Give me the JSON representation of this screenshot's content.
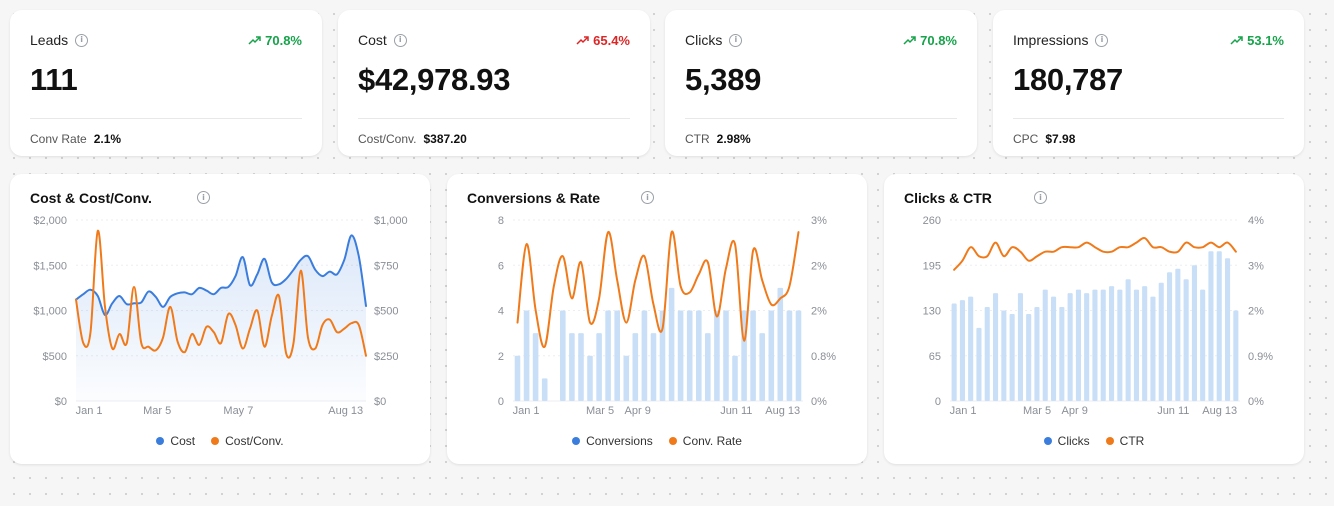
{
  "kpis": [
    {
      "label": "Leads",
      "delta": "70.8%",
      "trend": "up",
      "value": "111",
      "foot_label": "Conv Rate",
      "foot_value": "2.1%"
    },
    {
      "label": "Cost",
      "delta": "65.4%",
      "trend": "up-bad",
      "value": "$42,978.93",
      "foot_label": "Cost/Conv.",
      "foot_value": "$387.20"
    },
    {
      "label": "Clicks",
      "delta": "70.8%",
      "trend": "up",
      "value": "5,389",
      "foot_label": "CTR",
      "foot_value": "2.98%"
    },
    {
      "label": "Impressions",
      "delta": "53.1%",
      "trend": "up",
      "value": "180,787",
      "foot_label": "CPC",
      "foot_value": "$7.98"
    }
  ],
  "colors": {
    "blue": "#3b7ddd",
    "orange": "#f07a1a",
    "bar": "#c9dff7",
    "good": "#16a34a",
    "bad": "#dc2626"
  },
  "chart_data": [
    {
      "type": "line",
      "title": "Cost & Cost/Conv.",
      "x_ticks": [
        "Jan 1",
        "Mar 5",
        "May 7",
        "Aug 13"
      ],
      "y_left_ticks": [
        "$0",
        "$500",
        "$1,000",
        "$1,500",
        "$2,000"
      ],
      "y_right_ticks": [
        "$0",
        "$250",
        "$500",
        "$750",
        "$1,000"
      ],
      "ylim_left": [
        0,
        2000
      ],
      "ylim_right": [
        0,
        1000
      ],
      "series": [
        {
          "name": "Cost",
          "axis": "left",
          "style": "area",
          "color": "#3b7ddd",
          "values": [
            1120,
            1180,
            1230,
            1160,
            950,
            1080,
            1160,
            1070,
            1080,
            1090,
            1210,
            1150,
            1040,
            1150,
            1190,
            1200,
            1180,
            1250,
            1220,
            1180,
            1250,
            1260,
            1380,
            1590,
            1280,
            1400,
            1570,
            1310,
            1290,
            1350,
            1450,
            1560,
            1600,
            1450,
            1380,
            1430,
            1400,
            1560,
            1830,
            1600,
            1050
          ]
        },
        {
          "name": "Cost/Conv.",
          "axis": "right",
          "style": "line",
          "color": "#f07a1a",
          "values": [
            560,
            320,
            380,
            940,
            520,
            290,
            370,
            320,
            630,
            320,
            300,
            280,
            350,
            520,
            330,
            270,
            370,
            310,
            410,
            380,
            320,
            480,
            420,
            290,
            400,
            500,
            300,
            470,
            580,
            260,
            320,
            720,
            350,
            290,
            420,
            450,
            380,
            400,
            430,
            420,
            250
          ]
        }
      ],
      "legend": [
        "Cost",
        "Cost/Conv."
      ]
    },
    {
      "type": "bar+line",
      "title": "Conversions & Rate",
      "x_ticks": [
        "Jan 1",
        "Mar 5",
        "Apr 9",
        "Jun 11",
        "Aug 13"
      ],
      "y_left_ticks": [
        "0",
        "2",
        "4",
        "6",
        "8"
      ],
      "y_right_ticks": [
        "0%",
        "0.8%",
        "2%",
        "2%",
        "3%"
      ],
      "ylim_left": [
        0,
        8
      ],
      "ylim_right": [
        0,
        3
      ],
      "series": [
        {
          "name": "Conversions",
          "axis": "left",
          "style": "bar",
          "color": "#c9dff7",
          "values": [
            2,
            4,
            3,
            1,
            0,
            4,
            3,
            3,
            2,
            3,
            4,
            4,
            2,
            3,
            4,
            3,
            4,
            5,
            4,
            4,
            4,
            3,
            4,
            4,
            2,
            4,
            4,
            3,
            4,
            5,
            4,
            4
          ]
        },
        {
          "name": "Conv. Rate",
          "axis": "right",
          "style": "line",
          "color": "#f07a1a",
          "values": [
            1.3,
            2.6,
            1.5,
            0.9,
            1.9,
            2.4,
            1.7,
            2.3,
            1.3,
            1.7,
            2.8,
            2.0,
            1.3,
            2.0,
            2.4,
            1.6,
            1.2,
            2.8,
            1.9,
            1.8,
            2.1,
            2.3,
            1.4,
            2.2,
            2.6,
            1.0,
            2.5,
            2.0,
            1.6,
            1.7,
            1.9,
            2.8
          ]
        }
      ],
      "legend": [
        "Conversions",
        "Conv. Rate"
      ]
    },
    {
      "type": "bar+line",
      "title": "Clicks & CTR",
      "x_ticks": [
        "Jan 1",
        "Mar 5",
        "Apr 9",
        "Jun 11",
        "Aug 13"
      ],
      "y_left_ticks": [
        "0",
        "65",
        "130",
        "195",
        "260"
      ],
      "y_right_ticks": [
        "0%",
        "0.9%",
        "2%",
        "3%",
        "4%"
      ],
      "ylim_left": [
        0,
        260
      ],
      "ylim_right": [
        0,
        4
      ],
      "series": [
        {
          "name": "Clicks",
          "axis": "left",
          "style": "bar",
          "color": "#c9dff7",
          "values": [
            140,
            145,
            150,
            105,
            135,
            155,
            130,
            125,
            155,
            125,
            135,
            160,
            150,
            135,
            155,
            160,
            155,
            160,
            160,
            165,
            160,
            175,
            160,
            165,
            150,
            170,
            185,
            190,
            175,
            195,
            160,
            215,
            215,
            205,
            130
          ]
        },
        {
          "name": "CTR",
          "axis": "right",
          "style": "line",
          "color": "#f07a1a",
          "values": [
            2.9,
            3.1,
            3.4,
            3.2,
            3.2,
            3.5,
            3.2,
            3.4,
            3.3,
            3.1,
            3.2,
            3.3,
            3.3,
            3.4,
            3.4,
            3.4,
            3.5,
            3.4,
            3.3,
            3.3,
            3.4,
            3.4,
            3.5,
            3.6,
            3.4,
            3.4,
            3.3,
            3.3,
            3.5,
            3.4,
            3.4,
            3.5,
            3.4,
            3.5,
            3.3
          ]
        }
      ],
      "legend": [
        "Clicks",
        "CTR"
      ]
    }
  ]
}
